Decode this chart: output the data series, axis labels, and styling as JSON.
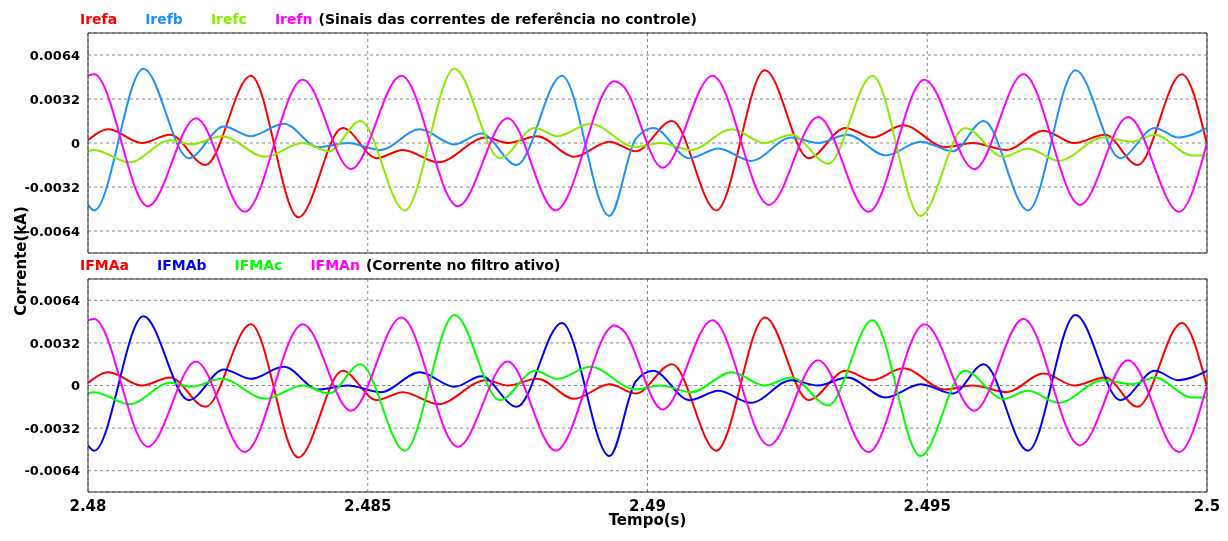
{
  "chart_data": [
    {
      "type": "line",
      "title": "(Sinais das correntes de referência no controle)",
      "ylabel": "Corrente(kA)",
      "legend": "top left",
      "grid": true,
      "tick_labels": "y",
      "xlim": [
        2.48,
        2.5
      ],
      "xticks": [
        2.48,
        2.485,
        2.49,
        2.495,
        2.5
      ],
      "ylim": [
        -0.008,
        0.008
      ],
      "yticks": [
        -0.0064,
        -0.0032,
        0,
        0.0032,
        0.0064
      ],
      "series": [
        {
          "name": "Irefa",
          "color": "#ff0000",
          "x": [
            2.48,
            2.48037,
            2.48096,
            2.48147,
            2.4821,
            2.48291,
            2.48376,
            2.48455,
            2.48516,
            2.48563,
            2.48626,
            2.48711,
            2.48751,
            2.48803,
            2.48869,
            2.48932,
            2.48979,
            2.49044,
            2.49123,
            2.4921,
            2.49288,
            2.49354,
            2.49402,
            2.49457,
            2.49532,
            2.49581,
            2.49642,
            2.49708,
            2.49763,
            2.49818,
            2.49876,
            2.49955,
            2.5
          ],
          "values": [
            0.0002,
            0.001,
            0,
            0.0006,
            -0.0016,
            0.0049,
            -0.0054,
            0.0011,
            -0.0011,
            -0.0005,
            -0.0014,
            0.0004,
            0,
            0.0005,
            -0.001,
            0.0001,
            -0.0006,
            0.0016,
            -0.0049,
            0.0053,
            -0.0011,
            0.0011,
            0.0004,
            0.0013,
            -0.0003,
            0,
            -0.0005,
            0.0009,
            0,
            0.0006,
            -0.0016,
            0.005,
            -0.0001
          ]
        },
        {
          "name": "Irefb",
          "color": "#1e90ff",
          "x": [
            2.48,
            2.48011,
            2.48099,
            2.4818,
            2.48243,
            2.48291,
            2.4835,
            2.48412,
            2.48464,
            2.48523,
            2.48593,
            2.48655,
            2.48703,
            2.48766,
            2.48847,
            2.48932,
            2.48979,
            2.4901,
            2.49075,
            2.49127,
            2.49185,
            2.49257,
            2.49305,
            2.49357,
            2.49426,
            2.49488,
            2.49546,
            2.49601,
            2.4968,
            2.49765,
            2.49845,
            2.49907,
            2.49948,
            2.5
          ],
          "values": [
            -0.0045,
            -0.0049,
            0.0054,
            -0.0011,
            0.0012,
            0.0005,
            0.0014,
            -0.0003,
            0,
            -0.0005,
            0.001,
            -0.0001,
            0.0007,
            -0.0016,
            0.0049,
            -0.0053,
            0.0003,
            0.0011,
            -0.0011,
            -0.0004,
            -0.0013,
            0.0004,
            0,
            0.0006,
            -0.0009,
            0.0001,
            -0.0006,
            0.0016,
            -0.0049,
            0.0053,
            -0.0011,
            0.0011,
            0.0004,
            0.0011
          ]
        },
        {
          "name": "Irefc",
          "color": "#88ee00",
          "x": [
            2.48,
            2.48011,
            2.48074,
            2.48147,
            2.48184,
            2.48239,
            2.48317,
            2.48383,
            2.48431,
            2.48487,
            2.48566,
            2.48655,
            2.48736,
            2.48799,
            2.48839,
            2.48898,
            2.48979,
            2.49023,
            2.49078,
            2.49151,
            2.49209,
            2.49257,
            2.49323,
            2.49402,
            2.49488,
            2.49567,
            2.49636,
            2.4968,
            2.49735,
            2.49814,
            2.49866,
            2.49907,
            2.49973,
            2.5
          ],
          "values": [
            -0.0006,
            -0.0005,
            -0.0014,
            0.0002,
            -0.0001,
            0.0005,
            -0.001,
            0,
            -0.0006,
            0.0016,
            -0.0049,
            0.0054,
            -0.0011,
            0.0011,
            0.0005,
            0.0014,
            -0.0003,
            0,
            -0.0005,
            0.001,
            0,
            0.0006,
            -0.0015,
            0.0049,
            -0.0053,
            0.0011,
            -0.001,
            -0.0004,
            -0.0013,
            0.0004,
            0.0001,
            0.0006,
            -0.0009,
            -0.0009
          ]
        },
        {
          "name": "Irefn",
          "color": "#ff00ff",
          "x": [
            2.48,
            2.48011,
            2.48107,
            2.48193,
            2.4828,
            2.48384,
            2.4847,
            2.4856,
            2.48661,
            2.4875,
            2.48836,
            2.48941,
            2.48955,
            2.49027,
            2.49116,
            2.49217,
            2.49305,
            2.49395,
            2.49495,
            2.49584,
            2.49672,
            2.49773,
            2.49859,
            2.4995,
            2.5
          ],
          "values": [
            0.0049,
            0.005,
            -0.0046,
            0.0018,
            -0.005,
            0.0046,
            -0.0019,
            0.0049,
            -0.0046,
            0.0018,
            -0.0049,
            0.0045,
            0.0042,
            -0.0018,
            0.0049,
            -0.0045,
            0.0019,
            -0.005,
            0.0046,
            -0.0019,
            0.005,
            -0.0045,
            0.0019,
            -0.005,
            0
          ]
        }
      ]
    },
    {
      "type": "line",
      "title": "(Corrente no filtro ativo)",
      "xlabel": "Tempo(s)",
      "legend": "top left",
      "grid": true,
      "xlim": [
        2.48,
        2.5
      ],
      "xticks": [
        2.48,
        2.485,
        2.49,
        2.495,
        2.5
      ],
      "ylim": [
        -0.008,
        0.008
      ],
      "yticks": [
        -0.0064,
        -0.0032,
        0,
        0.0032,
        0.0064
      ],
      "series": [
        {
          "name": "IFMAa",
          "color": "#ff0000",
          "x": [
            2.48,
            2.48037,
            2.48096,
            2.48147,
            2.4821,
            2.48291,
            2.48376,
            2.48455,
            2.48516,
            2.48563,
            2.48626,
            2.48711,
            2.48751,
            2.48803,
            2.48869,
            2.48932,
            2.48979,
            2.49044,
            2.49123,
            2.4921,
            2.49288,
            2.49354,
            2.49402,
            2.49457,
            2.49532,
            2.49581,
            2.49642,
            2.49708,
            2.49763,
            2.49818,
            2.49876,
            2.49955,
            2.5
          ],
          "values": [
            0.0002,
            0.001,
            0,
            0.0006,
            -0.0016,
            0.0046,
            -0.0054,
            0.0011,
            -0.0011,
            -0.0005,
            -0.0014,
            0.0004,
            0,
            0.0005,
            -0.001,
            0.0001,
            -0.0006,
            0.0016,
            -0.0049,
            0.0051,
            -0.0011,
            0.0011,
            0.0004,
            0.0013,
            -0.0003,
            0,
            -0.0005,
            0.0009,
            0,
            0.0006,
            -0.0016,
            0.0047,
            -0.0001
          ]
        },
        {
          "name": "IFMAb",
          "color": "#0000ff",
          "x": [
            2.48,
            2.48011,
            2.48099,
            2.4818,
            2.48243,
            2.48291,
            2.4835,
            2.48412,
            2.48464,
            2.48523,
            2.48593,
            2.48655,
            2.48703,
            2.48766,
            2.48847,
            2.48932,
            2.48979,
            2.4901,
            2.49075,
            2.49127,
            2.49185,
            2.49257,
            2.49305,
            2.49357,
            2.49426,
            2.49488,
            2.49546,
            2.49601,
            2.4968,
            2.49765,
            2.49845,
            2.49907,
            2.49948,
            2.5
          ],
          "values": [
            -0.0045,
            -0.0049,
            0.0052,
            -0.0011,
            0.0012,
            0.0005,
            0.0014,
            -0.0003,
            0,
            -0.0005,
            0.001,
            -0.0001,
            0.0007,
            -0.0016,
            0.0047,
            -0.0053,
            0.0003,
            0.0011,
            -0.0011,
            -0.0004,
            -0.0013,
            0.0004,
            0,
            0.0006,
            -0.0009,
            0.0001,
            -0.0006,
            0.0016,
            -0.0049,
            0.0053,
            -0.0011,
            0.0011,
            0.0004,
            0.0011
          ]
        },
        {
          "name": "IFMAc",
          "color": "#00ff00",
          "x": [
            2.48,
            2.48011,
            2.48074,
            2.48147,
            2.48184,
            2.48239,
            2.48317,
            2.48383,
            2.48431,
            2.48487,
            2.48566,
            2.48655,
            2.48736,
            2.48799,
            2.48839,
            2.48898,
            2.48979,
            2.49023,
            2.49078,
            2.49151,
            2.49209,
            2.49257,
            2.49323,
            2.49402,
            2.49488,
            2.49567,
            2.49636,
            2.4968,
            2.49735,
            2.49814,
            2.49866,
            2.49907,
            2.49973,
            2.5
          ],
          "values": [
            -0.0006,
            -0.0005,
            -0.0014,
            0.0002,
            -0.0001,
            0.0005,
            -0.001,
            0,
            -0.0006,
            0.0016,
            -0.0049,
            0.0053,
            -0.0011,
            0.0011,
            0.0005,
            0.0014,
            -0.0003,
            0,
            -0.0005,
            0.001,
            0,
            0.0006,
            -0.0015,
            0.0049,
            -0.0053,
            0.0011,
            -0.001,
            -0.0004,
            -0.0013,
            0.0004,
            0.0001,
            0.0006,
            -0.0009,
            -0.0009
          ]
        },
        {
          "name": "IFMAn",
          "color": "#ff00ff",
          "x": [
            2.48,
            2.48011,
            2.48107,
            2.48193,
            2.4828,
            2.48384,
            2.4847,
            2.4856,
            2.48661,
            2.4875,
            2.48836,
            2.48941,
            2.48955,
            2.49027,
            2.49116,
            2.49217,
            2.49305,
            2.49395,
            2.49495,
            2.49584,
            2.49672,
            2.49773,
            2.49859,
            2.4995,
            2.5
          ],
          "values": [
            0.0049,
            0.005,
            -0.0046,
            0.0018,
            -0.005,
            0.0046,
            -0.0019,
            0.0051,
            -0.0046,
            0.0018,
            -0.0049,
            0.0045,
            0.0042,
            -0.0018,
            0.0049,
            -0.0045,
            0.0019,
            -0.005,
            0.0046,
            -0.0019,
            0.005,
            -0.0045,
            0.0019,
            -0.005,
            0
          ]
        }
      ]
    }
  ]
}
